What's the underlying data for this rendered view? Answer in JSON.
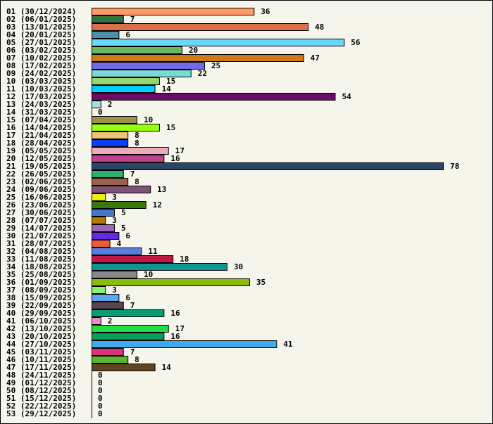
{
  "chart_data": {
    "type": "bar",
    "orientation": "horizontal",
    "title": "",
    "xlabel": "",
    "ylabel": "",
    "xlim": [
      0,
      78
    ],
    "grid": false,
    "categories": [
      "01 (30/12/2024)",
      "02 (06/01/2025)",
      "03 (13/01/2025)",
      "04 (20/01/2025)",
      "05 (27/01/2025)",
      "06 (03/02/2025)",
      "07 (10/02/2025)",
      "08 (17/02/2025)",
      "09 (24/02/2025)",
      "10 (03/03/2025)",
      "11 (10/03/2025)",
      "12 (17/03/2025)",
      "13 (24/03/2025)",
      "14 (31/03/2025)",
      "15 (07/04/2025)",
      "16 (14/04/2025)",
      "17 (21/04/2025)",
      "18 (28/04/2025)",
      "19 (05/05/2025)",
      "20 (12/05/2025)",
      "21 (19/05/2025)",
      "22 (26/05/2025)",
      "23 (02/06/2025)",
      "24 (09/06/2025)",
      "25 (16/06/2025)",
      "26 (23/06/2025)",
      "27 (30/06/2025)",
      "28 (07/07/2025)",
      "29 (14/07/2025)",
      "30 (21/07/2025)",
      "31 (28/07/2025)",
      "32 (04/08/2025)",
      "33 (11/08/2025)",
      "34 (18/08/2025)",
      "35 (25/08/2025)",
      "36 (01/09/2025)",
      "37 (08/09/2025)",
      "38 (15/09/2025)",
      "39 (22/09/2025)",
      "40 (29/09/2025)",
      "41 (06/10/2025)",
      "42 (13/10/2025)",
      "43 (20/10/2025)",
      "44 (27/10/2025)",
      "45 (03/11/2025)",
      "46 (10/11/2025)",
      "47 (17/11/2025)",
      "48 (24/11/2025)",
      "49 (01/12/2025)",
      "50 (08/12/2025)",
      "51 (15/12/2025)",
      "52 (22/12/2025)",
      "53 (29/12/2025)"
    ],
    "values": [
      36,
      7,
      48,
      6,
      56,
      20,
      47,
      25,
      22,
      15,
      14,
      54,
      2,
      0,
      10,
      15,
      8,
      8,
      17,
      16,
      78,
      7,
      8,
      13,
      3,
      12,
      5,
      3,
      5,
      6,
      4,
      11,
      18,
      30,
      10,
      35,
      3,
      6,
      7,
      16,
      2,
      17,
      16,
      41,
      7,
      8,
      14,
      0,
      0,
      0,
      0,
      0,
      0
    ],
    "colors": [
      "#ff9966",
      "#337340",
      "#d9704a",
      "#4d8fa6",
      "#66d9ff",
      "#6bb85c",
      "#cc7a1a",
      "#706be6",
      "#78d9d6",
      "#96d66b",
      "#00d0ff",
      "#6b0a6b",
      "#a8dfe0",
      "#ffffff",
      "#9a914a",
      "#99ff11",
      "#f0c478",
      "#0a3ef0",
      "#eeaabb",
      "#c04090",
      "#2c4466",
      "#2bb070",
      "#9a604e",
      "#7e5274",
      "#eeee0a",
      "#3a7a0a",
      "#4079cc",
      "#b07a00",
      "#9c66b8",
      "#6428e8",
      "#f05a38",
      "#5a7ee0",
      "#c01a44",
      "#109494",
      "#888888",
      "#8cbb0a",
      "#90f070",
      "#5aa8ea",
      "#5a4454",
      "#0a9c74",
      "#ee88c8",
      "#22dd44",
      "#0a9e5a",
      "#44aaee",
      "#dd3377",
      "#5ab830",
      "#5e4422",
      "#ffffff",
      "#ffffff",
      "#ffffff",
      "#ffffff",
      "#ffffff",
      "#ffffff"
    ]
  }
}
